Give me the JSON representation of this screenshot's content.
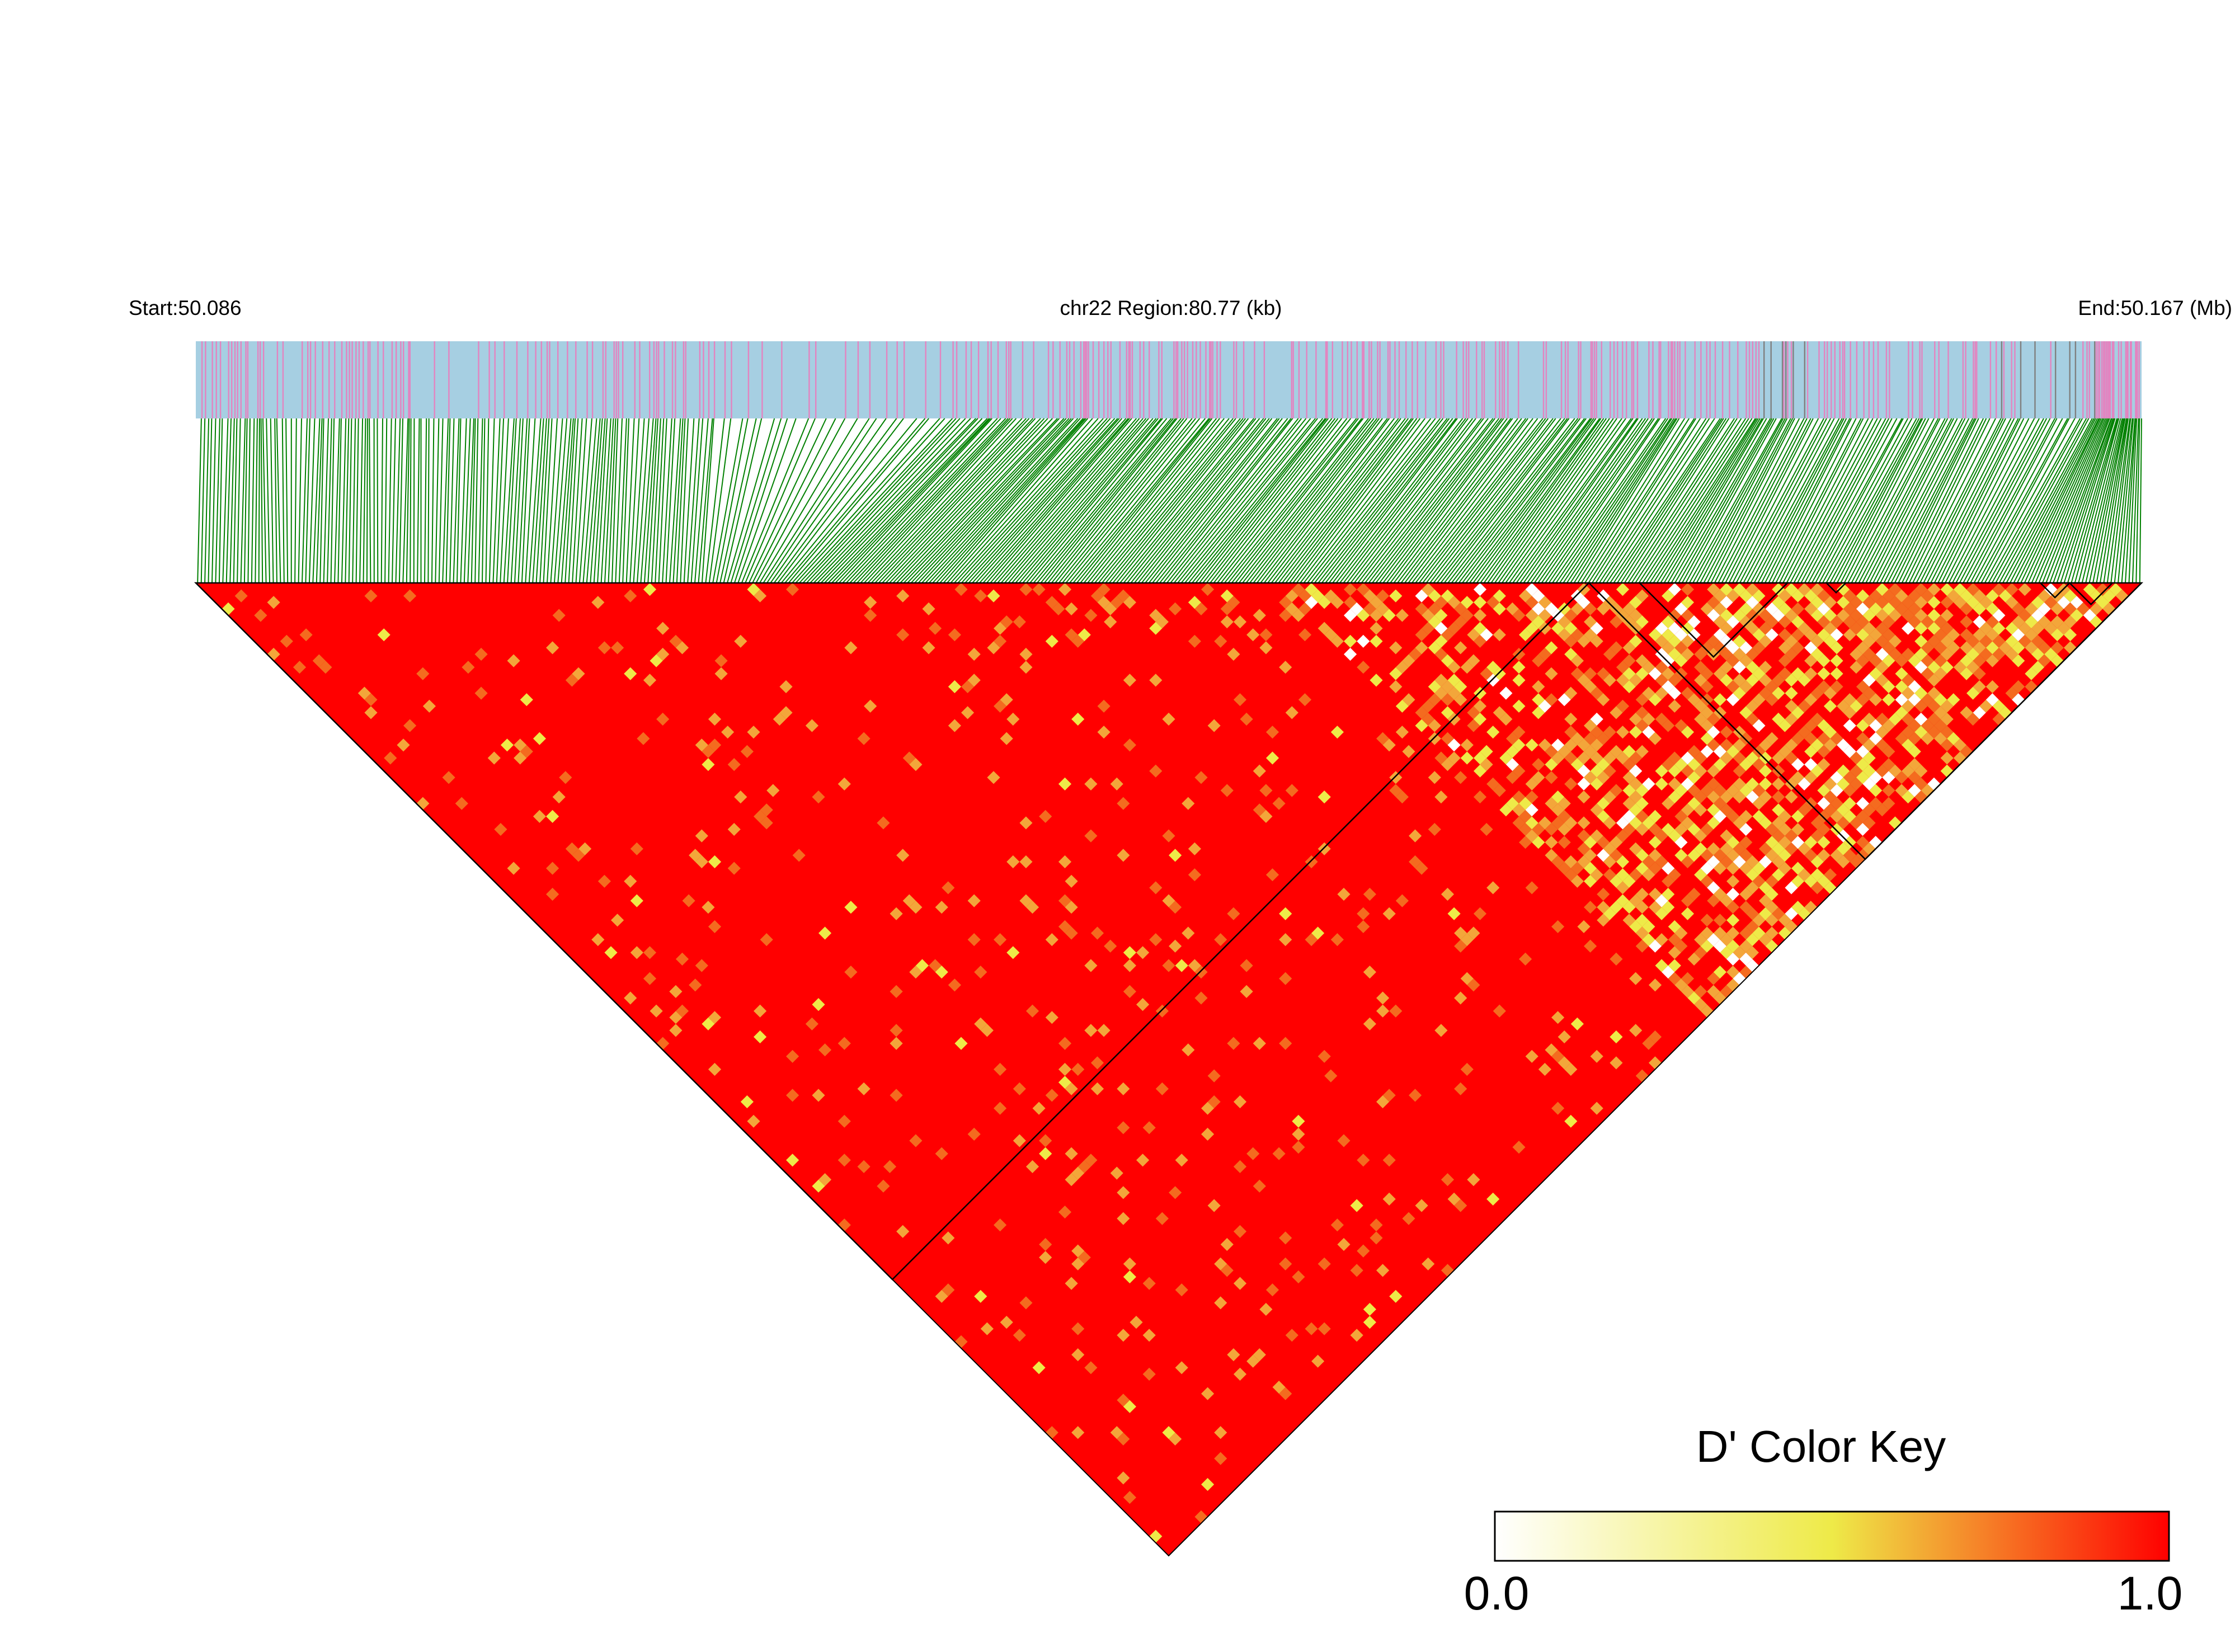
{
  "chart_data": {
    "type": "heatmap",
    "subtype": "ld-block-triangle",
    "region_header": {
      "start_label": "Start:50.086",
      "center_label": "chr22 Region:80.77 (kb)",
      "end_label": "End:50.167 (Mb)"
    },
    "chromosome": "chr22",
    "region_start_mb": 50.086,
    "region_end_mb": 50.167,
    "region_length_kb": 80.77,
    "metric": "D'",
    "value_range": [
      0.0,
      1.0
    ],
    "dominant_value": 1.0,
    "color_key": {
      "title": "D' Color Key",
      "min_label": "0.0",
      "max_label": "1.0",
      "stops": [
        {
          "value": 0.0,
          "color": "#ffffff"
        },
        {
          "value": 0.5,
          "color": "#eeea48"
        },
        {
          "value": 1.0,
          "color": "#ff0000"
        }
      ]
    },
    "colors": {
      "snp_track_background": "#a6cfe2",
      "snp_marker_primary": "#e384c0",
      "snp_marker_secondary": "#808080",
      "connector_lines": "#008000",
      "ld_high": "#ff0000",
      "ld_mid_high": "#f46b1f",
      "ld_mid": "#f3a63a",
      "ld_mid_low": "#eeea48",
      "block_outline": "#000000"
    },
    "haplotype_blocks": [
      {
        "snp_range": [
          0.0,
          0.716
        ]
      },
      {
        "snp_range": [
          0.716,
          1.0
        ]
      },
      {
        "snp_range": [
          0.742,
          0.818
        ]
      },
      {
        "snp_range": [
          0.838,
          0.848
        ]
      },
      {
        "snp_range": [
          0.948,
          0.963
        ]
      },
      {
        "snp_range": [
          0.963,
          0.985
        ]
      }
    ]
  }
}
